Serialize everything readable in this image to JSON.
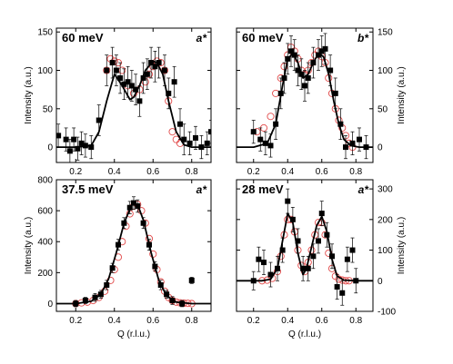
{
  "chart_data": [
    {
      "type": "scatter",
      "energy": "60 meV",
      "axis_tag": "a*",
      "xlabel": "",
      "ylabel": "Intensity (a.u.)",
      "ylabel_side": "left",
      "xlim": [
        0.1,
        0.9
      ],
      "ylim": [
        -20,
        155
      ],
      "xticks": [
        "0.2",
        "0.4",
        "0.6",
        "0.8"
      ],
      "yticks": [
        0,
        50,
        100,
        150
      ],
      "series": [
        {
          "kind": "filled-square",
          "x": [
            0.11,
            0.15,
            0.17,
            0.19,
            0.21,
            0.23,
            0.25,
            0.28,
            0.32,
            0.36,
            0.39,
            0.41,
            0.43,
            0.45,
            0.47,
            0.49,
            0.51,
            0.53,
            0.55,
            0.57,
            0.59,
            0.61,
            0.63,
            0.66,
            0.68,
            0.71,
            0.74,
            0.76,
            0.79,
            0.82,
            0.85,
            0.88,
            0.9
          ],
          "y": [
            15,
            10,
            -5,
            10,
            -2,
            5,
            2,
            0,
            35,
            100,
            110,
            100,
            90,
            82,
            85,
            80,
            75,
            60,
            90,
            95,
            110,
            105,
            110,
            100,
            70,
            85,
            30,
            10,
            5,
            12,
            0,
            5,
            20
          ],
          "err": [
            15,
            15,
            15,
            15,
            15,
            15,
            15,
            15,
            20,
            20,
            20,
            20,
            20,
            20,
            20,
            20,
            20,
            20,
            20,
            20,
            20,
            20,
            20,
            20,
            20,
            20,
            20,
            20,
            15,
            15,
            15,
            15,
            15
          ]
        },
        {
          "kind": "open-circle",
          "x": [
            0.36,
            0.38,
            0.4,
            0.42,
            0.44,
            0.47,
            0.5,
            0.53,
            0.56,
            0.58,
            0.6,
            0.62,
            0.64,
            0.66,
            0.68,
            0.7,
            0.72,
            0.74
          ],
          "y": [
            100,
            115,
            112,
            110,
            100,
            80,
            70,
            75,
            85,
            95,
            105,
            112,
            110,
            100,
            60,
            20,
            10,
            5
          ]
        },
        {
          "kind": "fit-line",
          "x": [
            0.1,
            0.2,
            0.28,
            0.32,
            0.36,
            0.4,
            0.44,
            0.48,
            0.5,
            0.53,
            0.56,
            0.6,
            0.62,
            0.65,
            0.68,
            0.72,
            0.76,
            0.8,
            0.9
          ],
          "y": [
            0,
            0,
            2,
            20,
            60,
            95,
            80,
            62,
            65,
            80,
            100,
            112,
            110,
            95,
            60,
            20,
            3,
            0,
            0
          ]
        }
      ]
    },
    {
      "type": "scatter",
      "energy": "60 meV",
      "axis_tag": "b*",
      "xlabel": "",
      "ylabel": "Intensity (a.u.)",
      "ylabel_side": "right",
      "xlim": [
        0.1,
        0.9
      ],
      "ylim": [
        -20,
        155
      ],
      "xticks": [
        "0.2",
        "0.4",
        "0.6",
        "0.8"
      ],
      "yticks": [
        0,
        50,
        100,
        150
      ],
      "series": [
        {
          "kind": "filled-square",
          "x": [
            0.2,
            0.24,
            0.27,
            0.3,
            0.33,
            0.36,
            0.38,
            0.4,
            0.42,
            0.44,
            0.46,
            0.48,
            0.5,
            0.52,
            0.55,
            0.58,
            0.6,
            0.62,
            0.65,
            0.68,
            0.71,
            0.74,
            0.78,
            0.82,
            0.86
          ],
          "y": [
            20,
            10,
            5,
            2,
            30,
            70,
            90,
            115,
            125,
            120,
            100,
            95,
            80,
            90,
            110,
            120,
            125,
            128,
            100,
            70,
            30,
            0,
            5,
            10,
            0
          ],
          "err": [
            15,
            15,
            15,
            15,
            20,
            20,
            20,
            20,
            20,
            20,
            20,
            20,
            20,
            20,
            20,
            20,
            20,
            20,
            20,
            20,
            20,
            15,
            15,
            15,
            15
          ]
        },
        {
          "kind": "open-circle",
          "x": [
            0.22,
            0.26,
            0.3,
            0.33,
            0.36,
            0.38,
            0.4,
            0.42,
            0.44,
            0.46,
            0.48,
            0.5,
            0.52,
            0.54,
            0.56,
            0.58,
            0.6,
            0.62,
            0.64,
            0.66,
            0.68,
            0.7,
            0.72,
            0.74,
            0.76,
            0.78
          ],
          "y": [
            20,
            25,
            40,
            70,
            90,
            105,
            120,
            130,
            125,
            115,
            100,
            95,
            100,
            110,
            120,
            125,
            118,
            110,
            90,
            70,
            50,
            35,
            25,
            15,
            5,
            0
          ]
        },
        {
          "kind": "fit-line",
          "x": [
            0.1,
            0.2,
            0.28,
            0.33,
            0.37,
            0.4,
            0.43,
            0.46,
            0.49,
            0.52,
            0.55,
            0.58,
            0.61,
            0.64,
            0.67,
            0.7,
            0.73,
            0.77,
            0.82,
            0.9
          ],
          "y": [
            0,
            0,
            5,
            30,
            80,
            115,
            122,
            110,
            90,
            95,
            110,
            122,
            118,
            95,
            60,
            30,
            10,
            2,
            0,
            0
          ]
        }
      ]
    },
    {
      "type": "scatter",
      "energy": "37.5 meV",
      "axis_tag": "a*",
      "xlabel": "Q (r.l.u.)",
      "ylabel": "Intensity (a.u.)",
      "ylabel_side": "left",
      "xlim": [
        0.1,
        0.9
      ],
      "ylim": [
        -50,
        800
      ],
      "xticks": [
        "0.2",
        "0.4",
        "0.6",
        "0.8"
      ],
      "yticks": [
        0,
        200,
        400,
        600,
        800
      ],
      "series": [
        {
          "kind": "filled-square",
          "x": [
            0.2,
            0.25,
            0.3,
            0.33,
            0.36,
            0.39,
            0.42,
            0.45,
            0.48,
            0.5,
            0.52,
            0.55,
            0.58,
            0.61,
            0.64,
            0.67,
            0.7,
            0.75,
            0.8
          ],
          "y": [
            0,
            20,
            40,
            60,
            120,
            230,
            380,
            520,
            620,
            650,
            630,
            520,
            380,
            240,
            120,
            60,
            20,
            0,
            150
          ],
          "err": [
            20,
            20,
            25,
            25,
            30,
            30,
            35,
            35,
            40,
            40,
            40,
            35,
            35,
            30,
            30,
            25,
            25,
            20,
            20
          ]
        },
        {
          "kind": "open-circle",
          "x": [
            0.2,
            0.23,
            0.26,
            0.29,
            0.32,
            0.35,
            0.38,
            0.4,
            0.42,
            0.44,
            0.46,
            0.48,
            0.5,
            0.52,
            0.54,
            0.56,
            0.58,
            0.6,
            0.62,
            0.64,
            0.66,
            0.68,
            0.7,
            0.72,
            0.74,
            0.76,
            0.78,
            0.8
          ],
          "y": [
            0,
            5,
            10,
            20,
            40,
            80,
            150,
            220,
            300,
            400,
            500,
            580,
            630,
            640,
            600,
            520,
            420,
            320,
            220,
            140,
            80,
            40,
            20,
            10,
            5,
            3,
            2,
            0
          ]
        },
        {
          "kind": "fit-line",
          "x": [
            0.1,
            0.2,
            0.28,
            0.33,
            0.37,
            0.41,
            0.45,
            0.49,
            0.52,
            0.55,
            0.59,
            0.63,
            0.67,
            0.72,
            0.8,
            0.9
          ],
          "y": [
            0,
            0,
            15,
            60,
            160,
            330,
            520,
            640,
            640,
            540,
            330,
            150,
            50,
            10,
            0,
            0
          ]
        }
      ]
    },
    {
      "type": "scatter",
      "energy": "28 meV",
      "axis_tag": "a*",
      "xlabel": "Q (r.l.u.)",
      "ylabel": "Intensity (a.u.)",
      "ylabel_side": "right",
      "xlim": [
        0.1,
        0.9
      ],
      "ylim": [
        -100,
        330
      ],
      "xticks": [
        "0.2",
        "0.4",
        "0.6",
        "0.8"
      ],
      "yticks": [
        -100,
        0,
        100,
        200,
        300
      ],
      "series": [
        {
          "kind": "filled-square",
          "x": [
            0.2,
            0.23,
            0.26,
            0.3,
            0.34,
            0.37,
            0.4,
            0.43,
            0.46,
            0.49,
            0.52,
            0.55,
            0.58,
            0.6,
            0.63,
            0.66,
            0.69,
            0.72,
            0.75,
            0.78,
            0.8
          ],
          "y": [
            0,
            70,
            60,
            20,
            40,
            100,
            260,
            200,
            130,
            40,
            40,
            80,
            130,
            220,
            150,
            80,
            -20,
            -40,
            70,
            100,
            0
          ],
          "err": [
            30,
            40,
            40,
            40,
            40,
            40,
            40,
            40,
            40,
            40,
            40,
            40,
            40,
            40,
            40,
            40,
            40,
            40,
            40,
            40,
            40
          ]
        },
        {
          "kind": "open-circle",
          "x": [
            0.25,
            0.28,
            0.31,
            0.34,
            0.36,
            0.38,
            0.4,
            0.42,
            0.44,
            0.46,
            0.48,
            0.5,
            0.52,
            0.54,
            0.56,
            0.58,
            0.6,
            0.62,
            0.64,
            0.66,
            0.68,
            0.7,
            0.72,
            0.74,
            0.76
          ],
          "y": [
            0,
            2,
            8,
            30,
            80,
            150,
            200,
            200,
            160,
            100,
            50,
            30,
            60,
            100,
            150,
            190,
            190,
            150,
            90,
            40,
            15,
            5,
            2,
            0,
            0
          ]
        },
        {
          "kind": "fit-line",
          "x": [
            0.1,
            0.25,
            0.3,
            0.34,
            0.37,
            0.4,
            0.43,
            0.46,
            0.49,
            0.51,
            0.54,
            0.57,
            0.6,
            0.63,
            0.66,
            0.69,
            0.73,
            0.8,
            0.9
          ],
          "y": [
            0,
            0,
            5,
            40,
            130,
            220,
            190,
            90,
            20,
            40,
            110,
            180,
            210,
            160,
            70,
            15,
            2,
            0,
            0
          ]
        }
      ]
    }
  ]
}
